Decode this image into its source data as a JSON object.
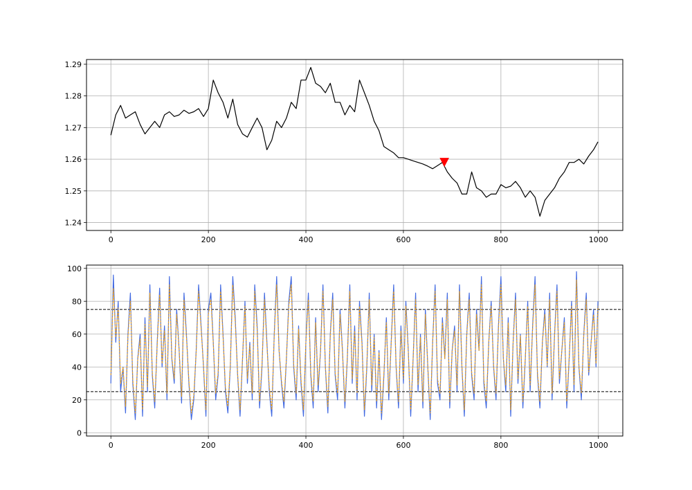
{
  "figure": {
    "background": "#ffffff",
    "colors": {
      "price_line": "#000000",
      "signal_marker": "#ff0000",
      "oscillator_main": "#4169e1",
      "oscillator_signal": "#ffa500",
      "grid": "#b0b0b0",
      "threshold_line": "#000000"
    }
  },
  "chart_data": [
    {
      "type": "line",
      "title": "",
      "xlabel": "",
      "ylabel": "",
      "grid": true,
      "xlim": [
        -50,
        1050
      ],
      "ylim": [
        1.2375,
        1.2915
      ],
      "x_ticks": [
        0,
        200,
        400,
        600,
        800,
        1000
      ],
      "x_tick_labels": [
        "0",
        "200",
        "400",
        "600",
        "800",
        "1000"
      ],
      "y_ticks": [
        1.24,
        1.25,
        1.26,
        1.27,
        1.28,
        1.29
      ],
      "y_tick_labels": [
        "1.24",
        "1.25",
        "1.26",
        "1.27",
        "1.28",
        "1.29"
      ],
      "series": [
        {
          "color": "#000000",
          "x": [
            0,
            10,
            20,
            30,
            40,
            50,
            60,
            70,
            80,
            90,
            100,
            110,
            120,
            130,
            140,
            150,
            160,
            170,
            180,
            190,
            200,
            210,
            220,
            230,
            240,
            250,
            260,
            270,
            280,
            290,
            300,
            310,
            320,
            330,
            340,
            350,
            360,
            370,
            380,
            390,
            400,
            410,
            420,
            430,
            440,
            450,
            460,
            470,
            480,
            490,
            500,
            510,
            520,
            530,
            540,
            550,
            560,
            570,
            580,
            590,
            600,
            610,
            620,
            630,
            640,
            650,
            660,
            670,
            680,
            690,
            700,
            710,
            720,
            730,
            740,
            750,
            760,
            770,
            780,
            790,
            800,
            810,
            820,
            830,
            840,
            850,
            860,
            870,
            880,
            890,
            900,
            910,
            920,
            930,
            940,
            950,
            960,
            970,
            980,
            990,
            999
          ],
          "y": [
            1.2676,
            1.274,
            1.277,
            1.273,
            1.274,
            1.275,
            1.271,
            1.268,
            1.27,
            1.272,
            1.27,
            1.274,
            1.275,
            1.2735,
            1.274,
            1.2755,
            1.2745,
            1.275,
            1.276,
            1.2735,
            1.276,
            1.285,
            1.281,
            1.278,
            1.273,
            1.279,
            1.271,
            1.268,
            1.267,
            1.27,
            1.273,
            1.27,
            1.263,
            1.266,
            1.272,
            1.27,
            1.273,
            1.278,
            1.276,
            1.285,
            1.285,
            1.289,
            1.284,
            1.283,
            1.281,
            1.284,
            1.278,
            1.278,
            1.274,
            1.277,
            1.275,
            1.285,
            1.281,
            1.277,
            1.272,
            1.269,
            1.264,
            1.263,
            1.262,
            1.2605,
            1.2605,
            1.26,
            1.2595,
            1.259,
            1.2585,
            1.2578,
            1.257,
            1.258,
            1.259,
            1.256,
            1.254,
            1.2525,
            1.249,
            1.249,
            1.256,
            1.251,
            1.25,
            1.248,
            1.249,
            1.249,
            1.252,
            1.251,
            1.2515,
            1.253,
            1.251,
            1.248,
            1.25,
            1.248,
            1.242,
            1.247,
            1.249,
            1.251,
            1.254,
            1.256,
            1.259,
            1.259,
            1.26,
            1.2585,
            1.261,
            1.263,
            1.2655
          ]
        }
      ],
      "markers": [
        {
          "type": "triangle-down",
          "color": "#ff0000",
          "x": [
            684
          ],
          "y": [
            1.259
          ]
        }
      ]
    },
    {
      "type": "line",
      "title": "",
      "xlabel": "",
      "ylabel": "",
      "grid": true,
      "xlim": [
        -50,
        1050
      ],
      "ylim": [
        -2,
        102
      ],
      "x_ticks": [
        0,
        200,
        400,
        600,
        800,
        1000
      ],
      "x_tick_labels": [
        "0",
        "200",
        "400",
        "600",
        "800",
        "1000"
      ],
      "y_ticks": [
        0,
        20,
        40,
        60,
        80,
        100
      ],
      "y_tick_labels": [
        "0",
        "20",
        "40",
        "60",
        "80",
        "100"
      ],
      "hlines": [
        {
          "y": 75,
          "color": "#000000",
          "style": "dashed"
        },
        {
          "y": 25,
          "color": "#000000",
          "style": "dashed"
        }
      ],
      "series": [
        {
          "color": "#4169e1",
          "x": [
            0,
            5,
            10,
            15,
            20,
            25,
            30,
            35,
            40,
            45,
            50,
            55,
            60,
            65,
            70,
            75,
            80,
            85,
            90,
            95,
            100,
            105,
            110,
            115,
            120,
            125,
            130,
            135,
            140,
            145,
            150,
            155,
            160,
            165,
            170,
            175,
            180,
            185,
            190,
            195,
            200,
            205,
            210,
            215,
            220,
            225,
            230,
            235,
            240,
            245,
            250,
            255,
            260,
            265,
            270,
            275,
            280,
            285,
            290,
            295,
            300,
            305,
            310,
            315,
            320,
            325,
            330,
            335,
            340,
            345,
            350,
            355,
            360,
            365,
            370,
            375,
            380,
            385,
            390,
            395,
            400,
            405,
            410,
            415,
            420,
            425,
            430,
            435,
            440,
            445,
            450,
            455,
            460,
            465,
            470,
            475,
            480,
            485,
            490,
            495,
            500,
            505,
            510,
            515,
            520,
            525,
            530,
            535,
            540,
            545,
            550,
            555,
            560,
            565,
            570,
            575,
            580,
            585,
            590,
            595,
            600,
            605,
            610,
            615,
            620,
            625,
            630,
            635,
            640,
            645,
            650,
            655,
            660,
            665,
            670,
            675,
            680,
            685,
            690,
            695,
            700,
            705,
            710,
            715,
            720,
            725,
            730,
            735,
            740,
            745,
            750,
            755,
            760,
            765,
            770,
            775,
            780,
            785,
            790,
            795,
            800,
            805,
            810,
            815,
            820,
            825,
            830,
            835,
            840,
            845,
            850,
            855,
            860,
            865,
            870,
            875,
            880,
            885,
            890,
            895,
            900,
            905,
            910,
            915,
            920,
            925,
            930,
            935,
            940,
            945,
            950,
            955,
            960,
            965,
            970,
            975,
            980,
            985,
            990,
            995,
            999
          ],
          "y": [
            30,
            96,
            55,
            80,
            25,
            40,
            12,
            60,
            85,
            30,
            8,
            45,
            60,
            10,
            70,
            25,
            90,
            35,
            15,
            55,
            88,
            40,
            65,
            20,
            95,
            45,
            30,
            75,
            50,
            18,
            85,
            60,
            30,
            8,
            20,
            50,
            90,
            65,
            40,
            10,
            75,
            85,
            55,
            20,
            35,
            90,
            60,
            25,
            12,
            40,
            95,
            70,
            35,
            10,
            45,
            80,
            30,
            55,
            20,
            90,
            65,
            15,
            40,
            85,
            55,
            25,
            10,
            60,
            95,
            50,
            30,
            15,
            45,
            80,
            95,
            40,
            20,
            65,
            30,
            10,
            55,
            85,
            35,
            15,
            70,
            25,
            50,
            90,
            40,
            12,
            60,
            85,
            35,
            20,
            75,
            50,
            15,
            45,
            90,
            30,
            65,
            20,
            80,
            55,
            10,
            40,
            85,
            25,
            60,
            15,
            50,
            8,
            35,
            70,
            20,
            55,
            90,
            40,
            15,
            65,
            30,
            80,
            50,
            10,
            45,
            85,
            25,
            60,
            15,
            75,
            40,
            8,
            55,
            90,
            30,
            20,
            70,
            45,
            85,
            15,
            50,
            65,
            25,
            90,
            40,
            10,
            60,
            85,
            35,
            20,
            75,
            50,
            95,
            30,
            15,
            55,
            80,
            40,
            20,
            65,
            95,
            45,
            25,
            70,
            10,
            55,
            85,
            30,
            60,
            15,
            45,
            80,
            25,
            65,
            95,
            35,
            15,
            55,
            75,
            40,
            85,
            20,
            60,
            90,
            30,
            50,
            70,
            15,
            45,
            80,
            25,
            98,
            40,
            20,
            60,
            85,
            35,
            55,
            75,
            40,
            80
          ]
        },
        {
          "color": "#ffa500",
          "style": "dashed",
          "x": [
            0,
            5,
            10,
            15,
            20,
            25,
            30,
            35,
            40,
            45,
            50,
            55,
            60,
            65,
            70,
            75,
            80,
            85,
            90,
            95,
            100,
            105,
            110,
            115,
            120,
            125,
            130,
            135,
            140,
            145,
            150,
            155,
            160,
            165,
            170,
            175,
            180,
            185,
            190,
            195,
            200,
            205,
            210,
            215,
            220,
            225,
            230,
            235,
            240,
            245,
            250,
            255,
            260,
            265,
            270,
            275,
            280,
            285,
            290,
            295,
            300,
            305,
            310,
            315,
            320,
            325,
            330,
            335,
            340,
            345,
            350,
            355,
            360,
            365,
            370,
            375,
            380,
            385,
            390,
            395,
            400,
            405,
            410,
            415,
            420,
            425,
            430,
            435,
            440,
            445,
            450,
            455,
            460,
            465,
            470,
            475,
            480,
            485,
            490,
            495,
            500,
            505,
            510,
            515,
            520,
            525,
            530,
            535,
            540,
            545,
            550,
            555,
            560,
            565,
            570,
            575,
            580,
            585,
            590,
            595,
            600,
            605,
            610,
            615,
            620,
            625,
            630,
            635,
            640,
            645,
            650,
            655,
            660,
            665,
            670,
            675,
            680,
            685,
            690,
            695,
            700,
            705,
            710,
            715,
            720,
            725,
            730,
            735,
            740,
            745,
            750,
            755,
            760,
            765,
            770,
            775,
            780,
            785,
            790,
            795,
            800,
            805,
            810,
            815,
            820,
            825,
            830,
            835,
            840,
            845,
            850,
            855,
            860,
            865,
            870,
            875,
            880,
            885,
            890,
            895,
            900,
            905,
            910,
            915,
            920,
            925,
            930,
            935,
            940,
            945,
            950,
            955,
            960,
            965,
            970,
            975,
            980,
            985,
            990,
            995,
            999
          ],
          "y": [
            35,
            88,
            58,
            76,
            30,
            40,
            16,
            58,
            80,
            33,
            12,
            44,
            57,
            14,
            66,
            28,
            85,
            37,
            19,
            53,
            84,
            42,
            62,
            24,
            90,
            46,
            33,
            72,
            50,
            22,
            81,
            58,
            32,
            12,
            23,
            49,
            86,
            63,
            41,
            14,
            72,
            81,
            54,
            24,
            37,
            86,
            58,
            28,
            16,
            41,
            90,
            67,
            36,
            14,
            46,
            77,
            33,
            53,
            24,
            86,
            62,
            19,
            42,
            81,
            53,
            28,
            14,
            59,
            90,
            50,
            32,
            19,
            46,
            77,
            90,
            42,
            24,
            63,
            33,
            14,
            55,
            81,
            37,
            19,
            67,
            29,
            50,
            86,
            41,
            16,
            59,
            81,
            37,
            24,
            72,
            49,
            19,
            46,
            86,
            33,
            62,
            24,
            77,
            53,
            14,
            42,
            81,
            29,
            58,
            19,
            49,
            12,
            37,
            67,
            24,
            54,
            86,
            41,
            19,
            62,
            33,
            77,
            49,
            14,
            45,
            81,
            29,
            58,
            19,
            72,
            41,
            12,
            55,
            86,
            33,
            24,
            67,
            45,
            81,
            19,
            50,
            62,
            29,
            86,
            41,
            14,
            59,
            81,
            37,
            24,
            72,
            50,
            90,
            33,
            19,
            55,
            77,
            41,
            24,
            63,
            90,
            45,
            29,
            67,
            14,
            55,
            81,
            33,
            59,
            19,
            46,
            77,
            29,
            63,
            90,
            37,
            19,
            55,
            72,
            41,
            81,
            24,
            59,
            86,
            33,
            50,
            67,
            19,
            46,
            77,
            29,
            93,
            41,
            24,
            59,
            81,
            37,
            55,
            72,
            42,
            77
          ]
        }
      ]
    }
  ]
}
